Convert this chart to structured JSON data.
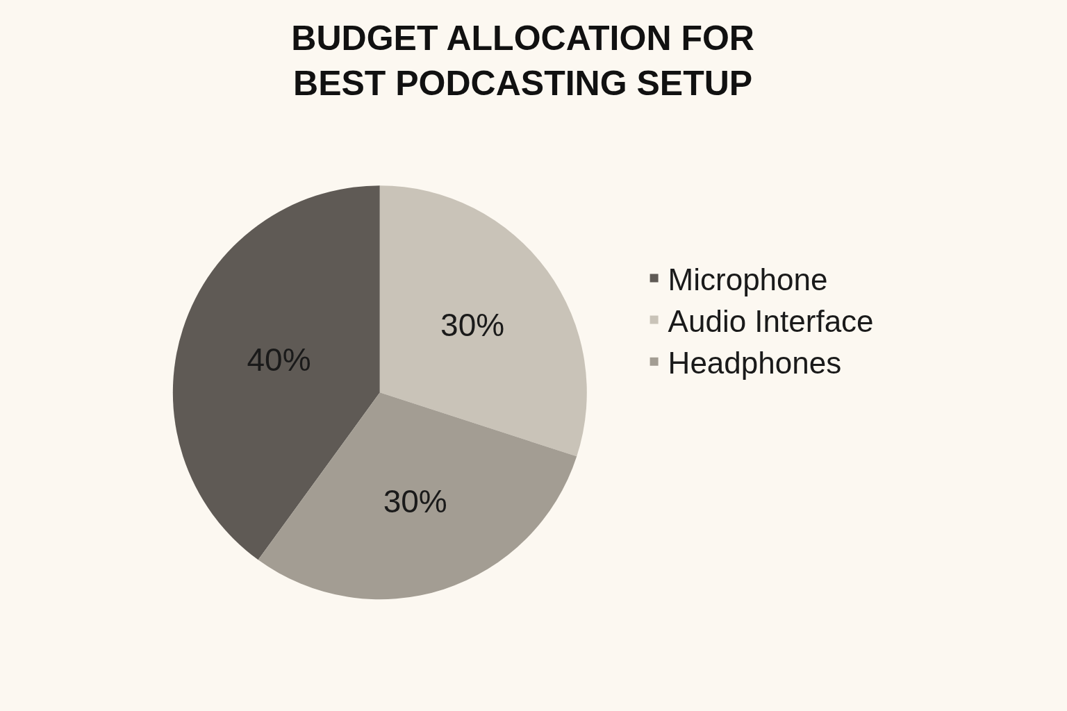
{
  "chart_data": {
    "type": "pie",
    "title": "BUDGET ALLOCATION FOR\nBEST PODCASTING SETUP",
    "categories": [
      "Microphone",
      "Audio Interface",
      "Headphones"
    ],
    "values": [
      40,
      30,
      30
    ],
    "colors": [
      "#5f5a55",
      "#c9c3b8",
      "#a39d93"
    ],
    "value_labels": [
      "40%",
      "30%",
      "30%"
    ],
    "legend": "right"
  }
}
